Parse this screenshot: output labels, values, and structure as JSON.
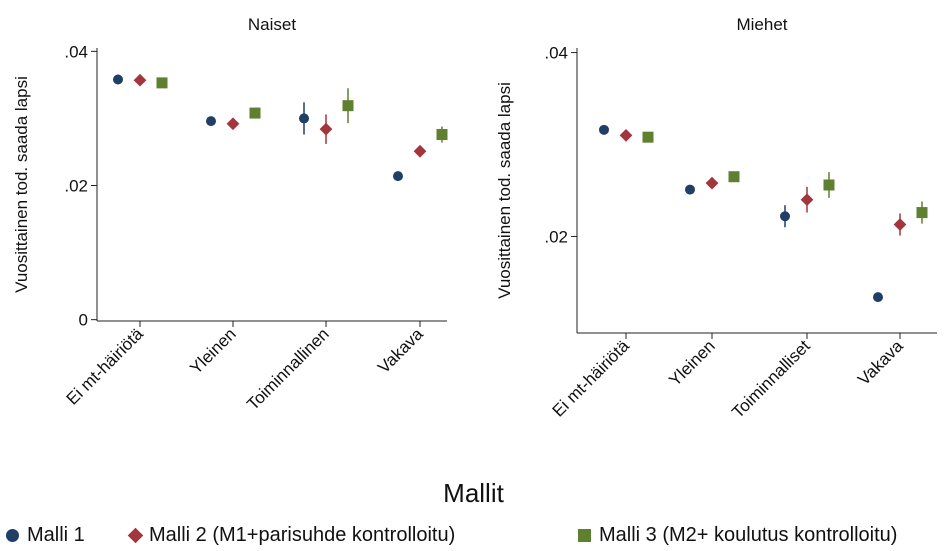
{
  "legend": {
    "title": "Mallit",
    "items": [
      {
        "label": "Malli 1",
        "marker": "circle",
        "color": "#1f3f66"
      },
      {
        "label": "Malli 2 (M1+parisuhde kontrolloitu)",
        "marker": "diamond",
        "color": "#a3353d"
      },
      {
        "label": "Malli 3 (M2+ koulutus kontrolloitu)",
        "marker": "square",
        "color": "#5f7f31"
      }
    ]
  },
  "chart_data": [
    {
      "type": "scatter",
      "title": "Naiset",
      "ylabel": "Vuosittainen tod. saada lapsi",
      "xlabel": "",
      "categories": [
        "Ei mt-häiriötä",
        "Yleinen",
        "Toiminnallinen",
        "Vakava"
      ],
      "yticks": [
        {
          "value": 0,
          "label": "0"
        },
        {
          "value": 0.02,
          "label": ".02"
        },
        {
          "value": 0.04,
          "label": ".04"
        }
      ],
      "ylim": [
        -0.0002,
        0.0405
      ],
      "grid": false,
      "series": [
        {
          "name": "Malli 1",
          "values": [
            0.0358,
            0.0296,
            0.03,
            0.0214
          ],
          "ci_low": [
            0.0356,
            0.0294,
            0.0276,
            0.021
          ],
          "ci_high": [
            0.036,
            0.0298,
            0.0324,
            0.0218
          ]
        },
        {
          "name": "Malli 2 (M1+parisuhde kontrolloitu)",
          "values": [
            0.0357,
            0.0292,
            0.0284,
            0.0251
          ],
          "ci_low": [
            0.0355,
            0.029,
            0.0262,
            0.0247
          ],
          "ci_high": [
            0.0359,
            0.0294,
            0.0306,
            0.0255
          ]
        },
        {
          "name": "Malli 3 (M2+ koulutus kontrolloitu)",
          "values": [
            0.0353,
            0.0308,
            0.0319,
            0.0276
          ],
          "ci_low": [
            0.0351,
            0.0306,
            0.0293,
            0.0264
          ],
          "ci_high": [
            0.0355,
            0.031,
            0.0345,
            0.0288
          ]
        }
      ]
    },
    {
      "type": "scatter",
      "title": "Miehet",
      "ylabel": "Vuosittainen tod. saada lapsi",
      "xlabel": "",
      "categories": [
        "Ei mt-häiriötä",
        "Yleinen",
        "Toiminnalliset",
        "Vakava"
      ],
      "yticks": [
        {
          "value": 0.02,
          "label": ".02"
        },
        {
          "value": 0.04,
          "label": ".04"
        }
      ],
      "ylim": [
        0.0095,
        0.0405
      ],
      "grid": false,
      "series": [
        {
          "name": "Malli 1",
          "values": [
            0.0316,
            0.0251,
            0.0222,
            0.0134
          ],
          "ci_low": [
            0.0314,
            0.0249,
            0.021,
            0.0132
          ],
          "ci_high": [
            0.0318,
            0.0253,
            0.0234,
            0.0136
          ]
        },
        {
          "name": "Malli 2 (M1+parisuhde kontrolloitu)",
          "values": [
            0.031,
            0.0258,
            0.024,
            0.0213
          ],
          "ci_low": [
            0.0308,
            0.0256,
            0.0226,
            0.0201
          ],
          "ci_high": [
            0.0312,
            0.026,
            0.0254,
            0.0225
          ]
        },
        {
          "name": "Malli 3 (M2+ koulutus kontrolloitu)",
          "values": [
            0.0308,
            0.0265,
            0.0256,
            0.0226
          ],
          "ci_low": [
            0.0306,
            0.026,
            0.0242,
            0.0214
          ],
          "ci_high": [
            0.031,
            0.027,
            0.027,
            0.0238
          ]
        }
      ]
    }
  ]
}
